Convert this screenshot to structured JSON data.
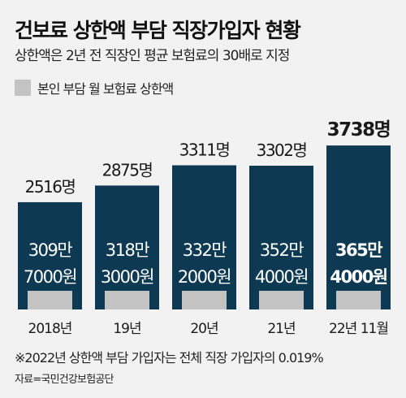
{
  "title": "건보료 상한액 부담 직장가입자 현황",
  "subtitle": "상한액은 2년 전 직장인 평균 보험료의 30배로 지정",
  "legend": {
    "label": "본인 부담 월 보험료 상한액"
  },
  "note": "※2022년 상한액 부담 가입자는 전체 직장 가입자의 0.019%",
  "source": "자료=국민건강보험공단",
  "colors": {
    "bar": "#0d3a52",
    "inner_bar": "#c3c3c3",
    "background": "#f2f2f2"
  },
  "chart_data": {
    "type": "bar",
    "categories": [
      "2018년",
      "19년",
      "20년",
      "21년",
      "22년 11월"
    ],
    "series": [
      {
        "name": "상한액 부담 직장가입자 수",
        "values": [
          2516,
          2875,
          3311,
          3302,
          3738
        ],
        "labels": [
          "2516명",
          "2875명",
          "3311명",
          "3302명",
          "3738명"
        ]
      },
      {
        "name": "본인 부담 월 보험료 상한액",
        "values": [
          3097000,
          3183000,
          3322000,
          3524000,
          3654000
        ],
        "labels": [
          [
            "309만",
            "7000원"
          ],
          [
            "318만",
            "3000원"
          ],
          [
            "332만",
            "2000원"
          ],
          [
            "352만",
            "4000원"
          ],
          [
            "365만",
            "4000원"
          ]
        ]
      }
    ],
    "highlight_index": 4
  }
}
